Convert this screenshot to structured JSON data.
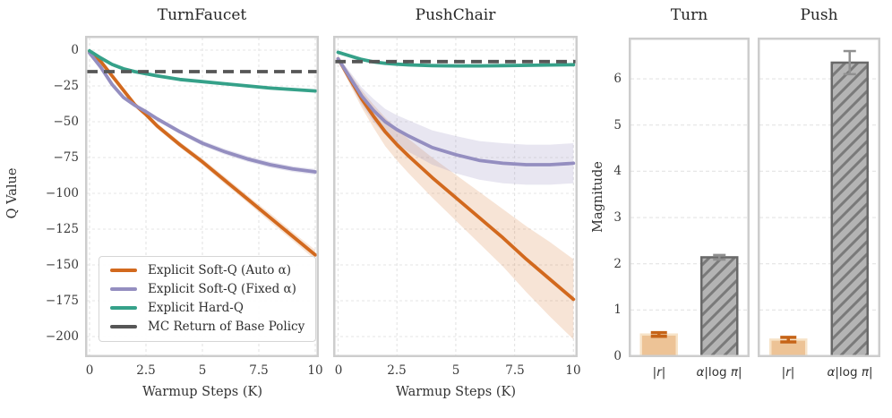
{
  "legend": {
    "items": [
      {
        "label": "Explicit Soft-Q (Auto α)",
        "color": "#D2691E",
        "dashed": false
      },
      {
        "label": "Explicit Soft-Q (Fixed α)",
        "color": "#948EC0",
        "dashed": false
      },
      {
        "label": "Explicit Hard-Q",
        "color": "#35A189",
        "dashed": false
      },
      {
        "label": "MC Return of Base Policy",
        "color": "#565656",
        "dashed": true
      }
    ]
  },
  "chart_data": [
    {
      "type": "line",
      "title": "TurnFaucet",
      "xlabel": "Warmup Steps (K)",
      "ylabel": "Q Value",
      "xlim": [
        0,
        10
      ],
      "ylim": [
        -212.5,
        10
      ],
      "xticks": [
        0,
        2.5,
        5,
        7.5,
        10
      ],
      "xtick_labels": [
        "0",
        "2.5",
        "5",
        "7.5",
        "10"
      ],
      "ytick_values": [
        0,
        -25,
        -50,
        -75,
        -100,
        -125,
        -150,
        -175,
        -200
      ],
      "ytick_labels": [
        "0",
        "−25",
        "−50",
        "−75",
        "−100",
        "−125",
        "−150",
        "−175",
        "−200"
      ],
      "hline": {
        "label": "MC Return of Base Policy",
        "value": -15,
        "color": "#565656"
      },
      "x": [
        0,
        0.5,
        1,
        1.5,
        2,
        2.5,
        3,
        4,
        5,
        6,
        7,
        8,
        9,
        10
      ],
      "series": [
        {
          "name": "Explicit Soft-Q (Auto α)",
          "color": "#D2691E",
          "band_opacity": 0.18,
          "values": [
            -1,
            -8,
            -18,
            -28,
            -38,
            -45,
            -53,
            -66,
            -78,
            -91,
            -104,
            -117,
            -130,
            -143
          ],
          "band": [
            0.5,
            1,
            1.2,
            1.5,
            1.5,
            1.8,
            2,
            2,
            2.2,
            2.5,
            2.5,
            3,
            3,
            3.5
          ]
        },
        {
          "name": "Explicit Soft-Q (Fixed α)",
          "color": "#948EC0",
          "band_opacity": 0.22,
          "values": [
            -2,
            -12,
            -24,
            -33,
            -38.5,
            -43,
            -48,
            -57,
            -65,
            -71,
            -76,
            -80,
            -83,
            -85
          ],
          "band": [
            0.5,
            1,
            1,
            1.2,
            1.2,
            1.5,
            1.5,
            1.5,
            1.8,
            2,
            2,
            2,
            2,
            2
          ]
        },
        {
          "name": "Explicit Hard-Q",
          "color": "#35A189",
          "band_opacity": 0.15,
          "values": [
            -0.5,
            -5.5,
            -10,
            -13,
            -15,
            -16.5,
            -18,
            -20.5,
            -22,
            -23.5,
            -25,
            -26.5,
            -27.5,
            -28.5
          ],
          "band": [
            0.3,
            0.6,
            0.8,
            0.8,
            0.8,
            0.8,
            0.8,
            0.8,
            0.8,
            0.8,
            0.8,
            0.8,
            0.8,
            0.8
          ]
        }
      ],
      "grid": true,
      "legend_position": "lower left"
    },
    {
      "type": "line",
      "title": "PushChair",
      "xlabel": "Warmup Steps (K)",
      "ylabel": "",
      "xlim": [
        0,
        10
      ],
      "ylim": [
        -212.5,
        10
      ],
      "xticks": [
        0,
        2.5,
        5,
        7.5,
        10
      ],
      "xtick_labels": [
        "0",
        "2.5",
        "5",
        "7.5",
        "10"
      ],
      "ytick_values": [
        0,
        -25,
        -50,
        -75,
        -100,
        -125,
        -150,
        -175,
        -200
      ],
      "ytick_labels": [],
      "hline": {
        "label": "MC Return of Base Policy",
        "value": -8,
        "color": "#565656"
      },
      "x": [
        0,
        0.5,
        1,
        1.5,
        2,
        2.5,
        3,
        4,
        5,
        6,
        7,
        8,
        9,
        10
      ],
      "series": [
        {
          "name": "Explicit Soft-Q (Auto α)",
          "color": "#D2691E",
          "band_opacity": 0.18,
          "values": [
            -6,
            -20,
            -34,
            -46,
            -57,
            -66,
            -74,
            -89,
            -103,
            -117,
            -131,
            -146,
            -160,
            -174
          ],
          "band": [
            1.5,
            4,
            6,
            8,
            10,
            11,
            12,
            14,
            16,
            18,
            20,
            23,
            26,
            28
          ]
        },
        {
          "name": "Explicit Soft-Q (Fixed α)",
          "color": "#948EC0",
          "band_opacity": 0.22,
          "values": [
            -6,
            -19,
            -32,
            -42,
            -50,
            -55.5,
            -60,
            -68,
            -73,
            -77,
            -79,
            -80,
            -80,
            -79
          ],
          "band": [
            1.5,
            4,
            6,
            8,
            9,
            10,
            11,
            12,
            13,
            13.5,
            14,
            14,
            14,
            14
          ]
        },
        {
          "name": "Explicit Hard-Q",
          "color": "#35A189",
          "band_opacity": 0.15,
          "values": [
            -1.5,
            -4,
            -6.5,
            -8.2,
            -9.2,
            -9.8,
            -10.3,
            -10.8,
            -11,
            -11,
            -10.8,
            -10.6,
            -10.4,
            -10.2
          ],
          "band": [
            0.5,
            0.8,
            0.8,
            0.8,
            0.8,
            0.8,
            0.8,
            0.8,
            0.8,
            0.8,
            0.8,
            0.8,
            0.8,
            0.8
          ]
        }
      ],
      "grid": true
    },
    {
      "type": "bar",
      "title": "Turn",
      "ylabel": "Magnitude",
      "categories": [
        "|r|",
        "α|log π|"
      ],
      "values": [
        0.47,
        2.14
      ],
      "errors": [
        0.04,
        0.05
      ],
      "ylim": [
        0,
        6.9
      ],
      "yticks": [
        0,
        1,
        2,
        3,
        4,
        5,
        6
      ],
      "ytick_labels": [
        "0",
        "1",
        "2",
        "3",
        "4",
        "5",
        "6"
      ],
      "bars": [
        {
          "fill": "#EDC396",
          "edge": "#F7E3C8",
          "err": "#C66418",
          "hatch": false
        },
        {
          "fill": "#B4B4B4",
          "edge": "#696969",
          "err": "#909090",
          "hatch": true,
          "hatch_color": "#7A7A7A"
        }
      ],
      "grid": true
    },
    {
      "type": "bar",
      "title": "Push",
      "ylabel": "",
      "categories": [
        "|r|",
        "α|log π|"
      ],
      "values": [
        0.36,
        6.35
      ],
      "errors": [
        0.05,
        0.25
      ],
      "ylim": [
        0,
        6.9
      ],
      "yticks": [
        0,
        1,
        2,
        3,
        4,
        5,
        6
      ],
      "ytick_labels": [
        "0",
        "1",
        "2",
        "3",
        "4",
        "5",
        "6"
      ],
      "bars": [
        {
          "fill": "#EDC396",
          "edge": "#F7E3C8",
          "err": "#C66418",
          "hatch": false
        },
        {
          "fill": "#B4B4B4",
          "edge": "#696969",
          "err": "#909090",
          "hatch": true,
          "hatch_color": "#7A7A7A"
        }
      ],
      "grid": true
    }
  ],
  "style": {
    "grid_color": "#E4E4E4",
    "spine_color": "#CDCDCD",
    "mc_color": "#565656"
  }
}
